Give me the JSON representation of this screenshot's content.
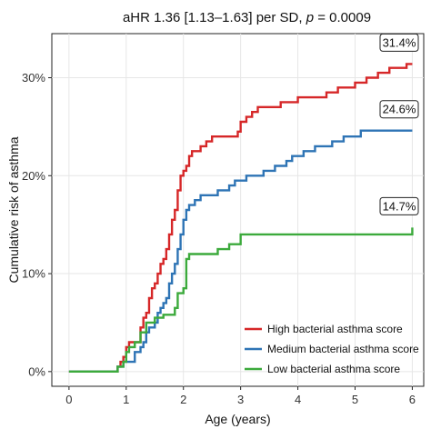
{
  "chart_data": {
    "type": "line",
    "step": true,
    "title_parts": [
      "aHR 1.36 [1.13–1.63] per SD, ",
      "p",
      " = 0.0009"
    ],
    "xlabel": "Age (years)",
    "ylabel": "Cumulative risk of asthma",
    "xlim": [
      -0.3,
      6.2
    ],
    "ylim": [
      -0.015,
      0.345
    ],
    "x_ticks": [
      0,
      1,
      2,
      3,
      4,
      5,
      6
    ],
    "x_tick_labels": [
      "0",
      "1",
      "2",
      "3",
      "4",
      "5",
      "6"
    ],
    "y_ticks": [
      0,
      0.1,
      0.2,
      0.3
    ],
    "y_tick_labels": [
      "0%",
      "10%",
      "20%",
      "30%"
    ],
    "grid": true,
    "legend_position": "bottom-right",
    "series": [
      {
        "name": "High bacterial asthma score",
        "color": "#d62728",
        "end_label": "31.4%",
        "points": [
          [
            0,
            0
          ],
          [
            0.8,
            0
          ],
          [
            0.85,
            0.005
          ],
          [
            0.9,
            0.01
          ],
          [
            0.95,
            0.015
          ],
          [
            1.0,
            0.025
          ],
          [
            1.05,
            0.03
          ],
          [
            1.2,
            0.03
          ],
          [
            1.25,
            0.045
          ],
          [
            1.3,
            0.055
          ],
          [
            1.35,
            0.06
          ],
          [
            1.4,
            0.075
          ],
          [
            1.45,
            0.085
          ],
          [
            1.5,
            0.09
          ],
          [
            1.55,
            0.1
          ],
          [
            1.6,
            0.11
          ],
          [
            1.65,
            0.115
          ],
          [
            1.7,
            0.125
          ],
          [
            1.75,
            0.14
          ],
          [
            1.8,
            0.155
          ],
          [
            1.85,
            0.165
          ],
          [
            1.9,
            0.185
          ],
          [
            1.95,
            0.2
          ],
          [
            2.0,
            0.205
          ],
          [
            2.05,
            0.21
          ],
          [
            2.1,
            0.22
          ],
          [
            2.15,
            0.225
          ],
          [
            2.3,
            0.23
          ],
          [
            2.4,
            0.235
          ],
          [
            2.5,
            0.24
          ],
          [
            2.9,
            0.24
          ],
          [
            2.95,
            0.245
          ],
          [
            3.0,
            0.255
          ],
          [
            3.1,
            0.26
          ],
          [
            3.2,
            0.265
          ],
          [
            3.3,
            0.27
          ],
          [
            3.6,
            0.27
          ],
          [
            3.7,
            0.275
          ],
          [
            4.0,
            0.28
          ],
          [
            4.4,
            0.28
          ],
          [
            4.5,
            0.285
          ],
          [
            4.7,
            0.29
          ],
          [
            5.0,
            0.295
          ],
          [
            5.2,
            0.3
          ],
          [
            5.4,
            0.305
          ],
          [
            5.6,
            0.31
          ],
          [
            5.9,
            0.314
          ],
          [
            6.0,
            0.314
          ]
        ]
      },
      {
        "name": "Medium bacterial asthma score",
        "color": "#2e74b5",
        "end_label": "24.6%",
        "points": [
          [
            0,
            0
          ],
          [
            0.8,
            0
          ],
          [
            0.85,
            0.005
          ],
          [
            0.95,
            0.01
          ],
          [
            1.1,
            0.01
          ],
          [
            1.15,
            0.02
          ],
          [
            1.25,
            0.025
          ],
          [
            1.3,
            0.03
          ],
          [
            1.35,
            0.04
          ],
          [
            1.4,
            0.045
          ],
          [
            1.5,
            0.05
          ],
          [
            1.55,
            0.06
          ],
          [
            1.6,
            0.065
          ],
          [
            1.65,
            0.07
          ],
          [
            1.7,
            0.075
          ],
          [
            1.75,
            0.09
          ],
          [
            1.8,
            0.1
          ],
          [
            1.85,
            0.11
          ],
          [
            1.9,
            0.125
          ],
          [
            1.95,
            0.14
          ],
          [
            2.0,
            0.155
          ],
          [
            2.05,
            0.165
          ],
          [
            2.1,
            0.17
          ],
          [
            2.2,
            0.175
          ],
          [
            2.3,
            0.18
          ],
          [
            2.5,
            0.18
          ],
          [
            2.6,
            0.185
          ],
          [
            2.75,
            0.185
          ],
          [
            2.8,
            0.19
          ],
          [
            2.9,
            0.195
          ],
          [
            3.0,
            0.195
          ],
          [
            3.1,
            0.2
          ],
          [
            3.3,
            0.2
          ],
          [
            3.4,
            0.205
          ],
          [
            3.6,
            0.21
          ],
          [
            3.8,
            0.215
          ],
          [
            3.9,
            0.22
          ],
          [
            4.0,
            0.22
          ],
          [
            4.1,
            0.225
          ],
          [
            4.3,
            0.23
          ],
          [
            4.6,
            0.235
          ],
          [
            4.8,
            0.24
          ],
          [
            5.0,
            0.24
          ],
          [
            5.1,
            0.246
          ],
          [
            6.0,
            0.246
          ]
        ]
      },
      {
        "name": "Low bacterial asthma score",
        "color": "#3caa3c",
        "end_label": "14.7%",
        "points": [
          [
            0,
            0
          ],
          [
            0.8,
            0
          ],
          [
            0.85,
            0.005
          ],
          [
            0.95,
            0.01
          ],
          [
            1.0,
            0.02
          ],
          [
            1.05,
            0.025
          ],
          [
            1.15,
            0.03
          ],
          [
            1.25,
            0.04
          ],
          [
            1.35,
            0.05
          ],
          [
            1.5,
            0.055
          ],
          [
            1.65,
            0.058
          ],
          [
            1.8,
            0.058
          ],
          [
            1.85,
            0.065
          ],
          [
            1.9,
            0.08
          ],
          [
            2.0,
            0.085
          ],
          [
            2.05,
            0.115
          ],
          [
            2.1,
            0.12
          ],
          [
            2.5,
            0.12
          ],
          [
            2.6,
            0.125
          ],
          [
            2.75,
            0.125
          ],
          [
            2.8,
            0.13
          ],
          [
            2.95,
            0.13
          ],
          [
            3.0,
            0.14
          ],
          [
            5.95,
            0.14
          ],
          [
            6.0,
            0.147
          ]
        ]
      }
    ]
  }
}
